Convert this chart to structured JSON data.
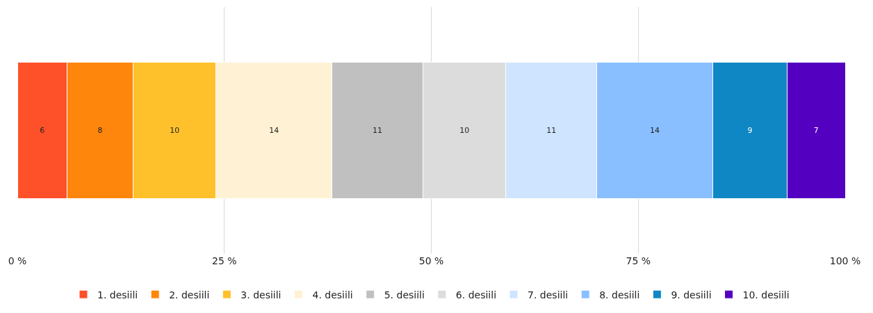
{
  "chart_data": {
    "type": "bar",
    "orientation": "horizontal",
    "stacked": true,
    "categories": [
      null
    ],
    "series": [
      {
        "name": "1. desiili",
        "color": "#ff5129",
        "values": [
          6
        ]
      },
      {
        "name": "2. desiili",
        "color": "#ff860c",
        "values": [
          8
        ]
      },
      {
        "name": "3. desiili",
        "color": "#ffc12b",
        "values": [
          10
        ]
      },
      {
        "name": "4. desiili",
        "color": "#fff2d4",
        "values": [
          14
        ]
      },
      {
        "name": "5. desiili",
        "color": "#c0c0c0",
        "values": [
          11
        ]
      },
      {
        "name": "6. desiili",
        "color": "#dcdcdc",
        "values": [
          10
        ]
      },
      {
        "name": "7. desiili",
        "color": "#cfe4ff",
        "values": [
          11
        ]
      },
      {
        "name": "8. desiili",
        "color": "#89bfff",
        "values": [
          14
        ]
      },
      {
        "name": "9. desiili",
        "color": "#0f87c4",
        "values": [
          9
        ]
      },
      {
        "name": "10. desiili",
        "color": "#5400c0",
        "values": [
          7
        ]
      }
    ],
    "xlim": [
      0,
      100
    ],
    "xticks": [
      {
        "value": 0,
        "label": "0 %"
      },
      {
        "value": 25,
        "label": "25 %"
      },
      {
        "value": 50,
        "label": "50 %"
      },
      {
        "value": 75,
        "label": "75 %"
      },
      {
        "value": 100,
        "label": "100 %"
      }
    ],
    "grid": "x",
    "legend": "bottom",
    "data_labels": true,
    "tick_labels": "x"
  }
}
